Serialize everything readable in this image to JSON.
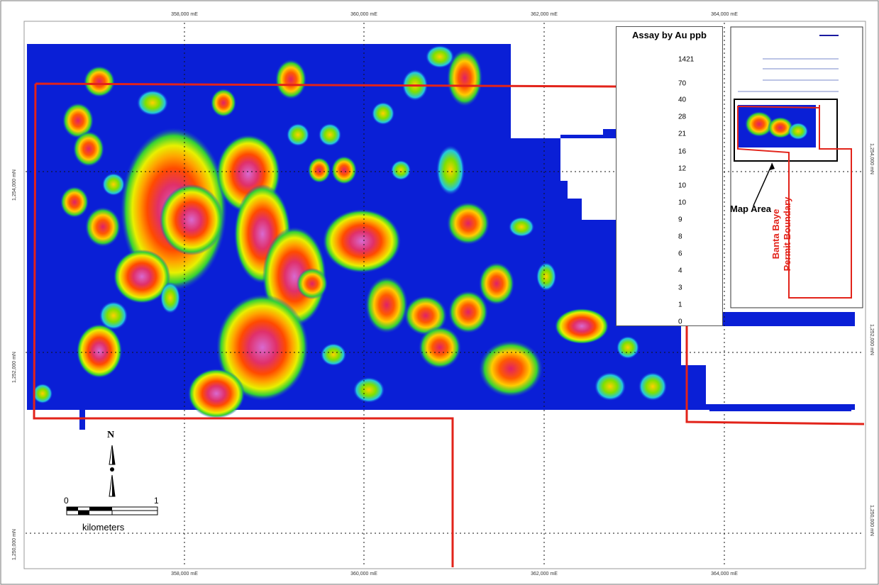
{
  "map": {
    "grid_labels_top": [
      "358,000 mE",
      "360,000 mE",
      "362,000 mE",
      "364,000 mE"
    ],
    "grid_labels_bottom": [
      "358,000 mE",
      "360,000 mE",
      "362,000 mE",
      "364,000 mE"
    ],
    "grid_labels_left": [
      "1,254,000 mN",
      "1,252,000 mN",
      "1,250,000 mN"
    ],
    "grid_labels_right": [
      "1,254,000 mN",
      "1,252,000 mN",
      "1,250,000 mN"
    ],
    "boundary_color": "#e2231a",
    "background_color": "#0a1fd6"
  },
  "legend": {
    "title": "Assay by Au ppb",
    "values": [
      "1421",
      "70",
      "40",
      "28",
      "21",
      "16",
      "12",
      "10",
      "10",
      "9",
      "8",
      "6",
      "4",
      "3",
      "1",
      "0"
    ],
    "colors": [
      "#ff9de8",
      "#e00060",
      "#ff2a00",
      "#ff7a00",
      "#ffc000",
      "#e8ff00",
      "#38e000",
      "#00d8ff",
      "#0a1fd6",
      "#0a1fd6",
      "#0a1fd6",
      "#0a1fd6",
      "#0a1fd6",
      "#0a1fd6",
      "#0a1fd6",
      "#0a1fd6"
    ]
  },
  "inset": {
    "map_area_label": "Map Area",
    "permit_label": "Banta Baye Permit Boundary"
  },
  "north_arrow": {
    "letter": "N"
  },
  "scale_bar": {
    "start": "0",
    "end": "1",
    "units": "kilometers"
  }
}
